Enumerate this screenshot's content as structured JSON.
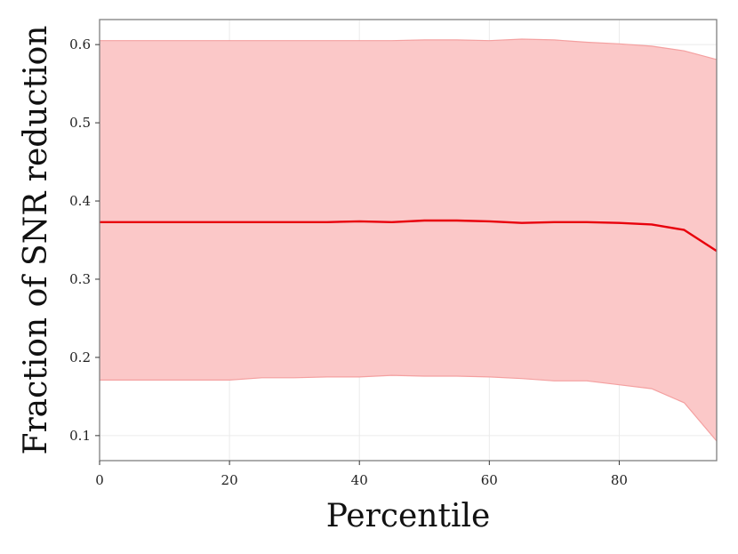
{
  "chart_data": {
    "type": "area",
    "xlabel": "Percentile",
    "ylabel": "Fraction of SNR reduction",
    "xlim": [
      0,
      95
    ],
    "ylim": [
      0.068,
      0.632
    ],
    "xticks": [
      0,
      20,
      40,
      60,
      80
    ],
    "yticks": [
      0.1,
      0.2,
      0.3,
      0.4,
      0.5,
      0.6
    ],
    "x": [
      0,
      5,
      10,
      15,
      20,
      25,
      30,
      35,
      40,
      45,
      50,
      55,
      60,
      65,
      70,
      75,
      80,
      85,
      90,
      95
    ],
    "series": [
      {
        "role": "mean",
        "color": "#e8000b",
        "values": [
          0.373,
          0.373,
          0.373,
          0.373,
          0.373,
          0.373,
          0.373,
          0.373,
          0.374,
          0.373,
          0.375,
          0.375,
          0.374,
          0.372,
          0.373,
          0.373,
          0.372,
          0.37,
          0.363,
          0.336
        ]
      },
      {
        "role": "band-upper",
        "color": "#f4a0a0",
        "values": [
          0.605,
          0.605,
          0.605,
          0.605,
          0.605,
          0.605,
          0.605,
          0.605,
          0.605,
          0.605,
          0.606,
          0.606,
          0.605,
          0.607,
          0.606,
          0.603,
          0.601,
          0.598,
          0.592,
          0.581
        ]
      },
      {
        "role": "band-lower",
        "color": "#f4a0a0",
        "values": [
          0.171,
          0.171,
          0.171,
          0.171,
          0.171,
          0.174,
          0.174,
          0.175,
          0.175,
          0.177,
          0.176,
          0.176,
          0.175,
          0.173,
          0.17,
          0.17,
          0.165,
          0.16,
          0.142,
          0.093
        ]
      }
    ],
    "band_fill": "#fbc8c8",
    "grid": true,
    "grid_color": "#ebebeb",
    "frame_color": "#7f7f7f"
  }
}
